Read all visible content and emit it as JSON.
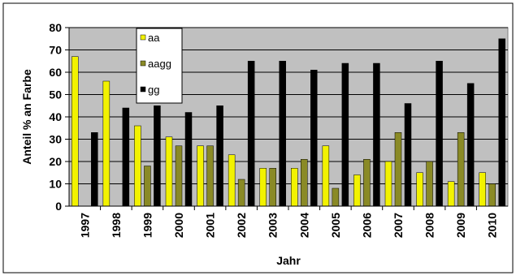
{
  "chart_data": {
    "type": "bar",
    "xlabel": "Jahr",
    "ylabel": "Anteil % an Farbe",
    "ylim": [
      0,
      80
    ],
    "yticks": [
      0,
      10,
      20,
      30,
      40,
      50,
      60,
      70,
      80
    ],
    "grid": true,
    "legend_position": "top-left",
    "categories": [
      "1997",
      "1998",
      "1999",
      "2000",
      "2001",
      "2002",
      "2003",
      "2004",
      "2005",
      "2006",
      "2007",
      "2008",
      "2009",
      "2010"
    ],
    "series": [
      {
        "name": "aa",
        "color": "#f2f200",
        "values": [
          67,
          56,
          36,
          31,
          27,
          23,
          17,
          17,
          27,
          14,
          20,
          15,
          11,
          15
        ]
      },
      {
        "name": "aagg",
        "color": "#8a8a26",
        "values": [
          0,
          0,
          18,
          27,
          27,
          12,
          17,
          21,
          8,
          21,
          33,
          20,
          33,
          10
        ]
      },
      {
        "name": "gg",
        "color": "#000000",
        "values": [
          33,
          44,
          45,
          42,
          45,
          65,
          65,
          61,
          64,
          64,
          46,
          65,
          55,
          75
        ]
      }
    ],
    "plot_background": "#c0c0c0"
  }
}
